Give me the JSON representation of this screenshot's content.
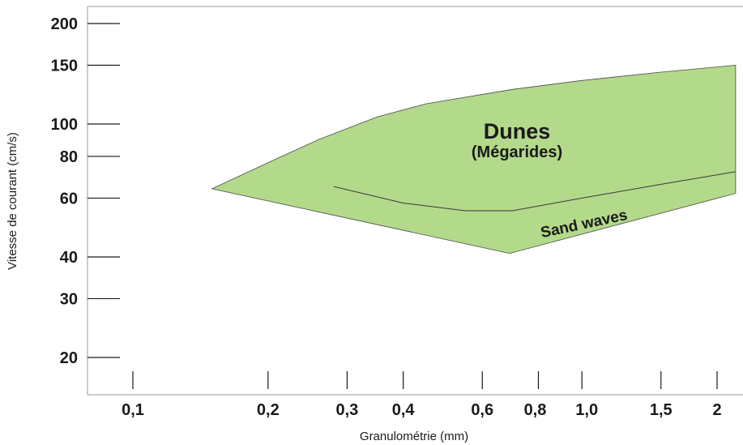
{
  "chart_data": {
    "type": "area",
    "xscale": "log",
    "yscale": "log",
    "xlabel": "Granulométrie (mm)",
    "ylabel": "Vitesse de courant (cm/s)",
    "xticks": [
      "0,1",
      "0,2",
      "0,3",
      "0,4",
      "0,6",
      "0,8",
      "1,0",
      "1,5",
      "2"
    ],
    "yticks": [
      "20",
      "30",
      "40",
      "60",
      "80",
      "100",
      "150",
      "200"
    ],
    "xlim": [
      0.08,
      2.2
    ],
    "ylim": [
      17,
      210
    ],
    "regions": [
      {
        "name": "Dunes",
        "subtitle": "(Mégarides)",
        "color": "#b3d98a",
        "edge_color": "#4a4a4a",
        "boundary": [
          {
            "x": 0.15,
            "y": 64
          },
          {
            "x": 0.21,
            "y": 79
          },
          {
            "x": 0.26,
            "y": 90
          },
          {
            "x": 0.35,
            "y": 105
          },
          {
            "x": 0.45,
            "y": 115
          },
          {
            "x": 0.7,
            "y": 127
          },
          {
            "x": 1.0,
            "y": 135
          },
          {
            "x": 1.5,
            "y": 143
          },
          {
            "x": 2.2,
            "y": 150
          },
          {
            "x": 2.2,
            "y": 62
          },
          {
            "x": 0.69,
            "y": 41
          },
          {
            "x": 0.15,
            "y": 64
          }
        ]
      }
    ],
    "divider": {
      "label": "Sand waves",
      "points": [
        {
          "x": 0.28,
          "y": 65
        },
        {
          "x": 0.4,
          "y": 58
        },
        {
          "x": 0.55,
          "y": 55
        },
        {
          "x": 0.7,
          "y": 55
        },
        {
          "x": 1.0,
          "y": 60
        },
        {
          "x": 1.5,
          "y": 66
        },
        {
          "x": 2.2,
          "y": 72
        }
      ]
    }
  }
}
